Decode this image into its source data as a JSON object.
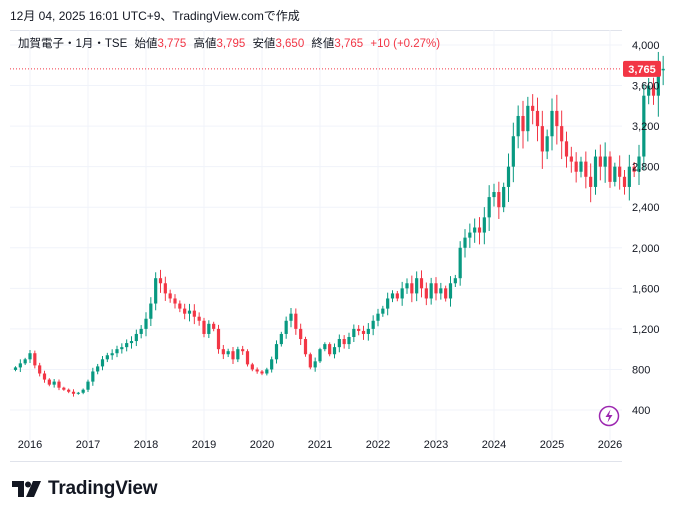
{
  "caption": "12月 04, 2025 16:01 UTC+9、TradingView.comで作成",
  "legend": {
    "symbol": "加賀電子・1月・TSE",
    "open_label": "始値",
    "open": "3,775",
    "high_label": "高値",
    "high": "3,795",
    "low_label": "安値",
    "low": "3,650",
    "close_label": "終値",
    "close": "3,765",
    "change": "+10 (+0.27%)"
  },
  "price_tag": "3,765",
  "brand": "TradingView",
  "colors": {
    "up": "#089981",
    "down": "#f23645",
    "grid": "#f0f3fa",
    "text": "#131722",
    "accent": "#9c27b0"
  },
  "chart_data": {
    "type": "candlestick",
    "title": "加賀電子・1月・TSE",
    "interval": "monthly",
    "x_ticks": [
      "2016",
      "2017",
      "2018",
      "2019",
      "2020",
      "2021",
      "2022",
      "2023",
      "2024",
      "2025",
      "2026"
    ],
    "y_ticks": [
      "400",
      "800",
      "1,200",
      "1,600",
      "2,000",
      "2,400",
      "2,800",
      "3,200",
      "3,600",
      "4,000"
    ],
    "y_tick_values": [
      400,
      800,
      1200,
      1600,
      2000,
      2400,
      2800,
      3200,
      3600,
      4000
    ],
    "ylim": [
      200,
      4100
    ],
    "start": "2015-10",
    "last_price": 3765,
    "closes": [
      820,
      860,
      900,
      960,
      840,
      760,
      700,
      650,
      680,
      620,
      600,
      580,
      560,
      570,
      600,
      680,
      780,
      830,
      900,
      940,
      960,
      1000,
      1020,
      1060,
      1080,
      1150,
      1200,
      1300,
      1450,
      1700,
      1650,
      1550,
      1500,
      1450,
      1400,
      1350,
      1380,
      1320,
      1280,
      1150,
      1250,
      1200,
      1000,
      950,
      980,
      900,
      1000,
      980,
      850,
      800,
      780,
      760,
      800,
      900,
      1050,
      1150,
      1280,
      1350,
      1200,
      1100,
      950,
      820,
      880,
      1000,
      1050,
      950,
      1020,
      1100,
      1050,
      1120,
      1200,
      1180,
      1150,
      1200,
      1280,
      1350,
      1400,
      1500,
      1550,
      1500,
      1600,
      1650,
      1550,
      1700,
      1600,
      1500,
      1650,
      1550,
      1600,
      1500,
      1650,
      1700,
      2000,
      2100,
      2150,
      2200,
      2150,
      2300,
      2500,
      2550,
      2400,
      2600,
      2800,
      3100,
      3300,
      3150,
      3400,
      3350,
      3200,
      2950,
      3100,
      3350,
      3200,
      3050,
      2900,
      2850,
      2750,
      2850,
      2700,
      2600,
      2900,
      2800,
      2900,
      2650,
      2800,
      2700,
      2600,
      2800,
      2750,
      2900,
      3500,
      3600,
      3500,
      3750,
      3765
    ]
  }
}
